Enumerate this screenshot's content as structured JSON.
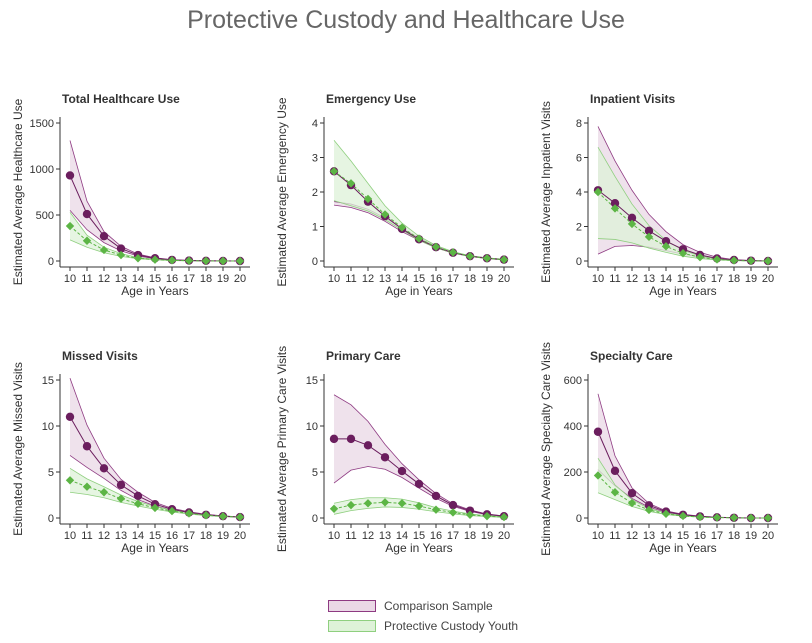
{
  "title": "Protective Custody and Healthcare Use",
  "colors": {
    "comparison": "#6b1e5e",
    "comparison_fill": "#ead8e6",
    "comparison_band": "#8e3a82",
    "custody": "#5cb545",
    "custody_fill": "#def2d8",
    "custody_band": "#8fcf7f",
    "axis": "#333333"
  },
  "legend": {
    "comparison_label": "Comparison Sample",
    "custody_label": "Protective Custody Youth"
  },
  "chart_data": [
    {
      "type": "line",
      "title": "Total Healthcare Use",
      "xlabel": "Age in Years",
      "ylabel": "Estimated Average Healthcare Use",
      "x": [
        10,
        11,
        12,
        13,
        14,
        15,
        16,
        17,
        18,
        19,
        20
      ],
      "ylim": [
        0,
        1500
      ],
      "yticks": [
        0,
        500,
        1000,
        1500
      ],
      "series": [
        {
          "name": "Comparison Sample",
          "values": [
            930,
            510,
            270,
            135,
            65,
            30,
            12,
            5,
            2,
            1,
            0
          ],
          "lower": [
            550,
            340,
            200,
            110,
            55,
            25,
            10,
            4,
            2,
            1,
            0
          ],
          "upper": [
            1310,
            650,
            320,
            160,
            75,
            35,
            15,
            6,
            2,
            1,
            0
          ]
        },
        {
          "name": "Protective Custody Youth",
          "values": [
            380,
            220,
            120,
            65,
            30,
            15,
            7,
            3,
            1,
            0,
            0
          ],
          "lower": [
            230,
            150,
            90,
            50,
            25,
            12,
            5,
            2,
            1,
            0,
            0
          ],
          "upper": [
            530,
            280,
            150,
            80,
            38,
            18,
            8,
            3,
            1,
            0,
            0
          ]
        }
      ]
    },
    {
      "type": "line",
      "title": "Emergency Use",
      "xlabel": "Age in Years",
      "ylabel": "Estimated Average Emergency Use",
      "x": [
        10,
        11,
        12,
        13,
        14,
        15,
        16,
        17,
        18,
        19,
        20
      ],
      "ylim": [
        0,
        4
      ],
      "yticks": [
        0,
        1,
        2,
        3,
        4
      ],
      "series": [
        {
          "name": "Comparison Sample",
          "values": [
            2.6,
            2.2,
            1.72,
            1.3,
            0.93,
            0.63,
            0.4,
            0.24,
            0.14,
            0.08,
            0.04
          ],
          "lower": [
            1.62,
            1.55,
            1.4,
            1.15,
            0.85,
            0.6,
            0.38,
            0.23,
            0.13,
            0.07,
            0.03
          ],
          "upper": [
            1.72,
            1.65,
            1.5,
            1.25,
            0.95,
            0.67,
            0.42,
            0.26,
            0.15,
            0.09,
            0.05
          ]
        },
        {
          "name": "Protective Custody Youth",
          "values": [
            2.6,
            2.25,
            1.8,
            1.35,
            0.97,
            0.65,
            0.41,
            0.25,
            0.14,
            0.08,
            0.04
          ],
          "lower": [
            1.75,
            1.6,
            1.45,
            1.2,
            0.9,
            0.6,
            0.38,
            0.23,
            0.13,
            0.07,
            0.03
          ],
          "upper": [
            3.5,
            2.9,
            2.25,
            1.6,
            1.1,
            0.72,
            0.45,
            0.27,
            0.15,
            0.09,
            0.05
          ]
        }
      ]
    },
    {
      "type": "line",
      "title": "Inpatient Visits",
      "xlabel": "Age in Years",
      "ylabel": "Estimated Average Inpatient Visits",
      "x": [
        10,
        11,
        12,
        13,
        14,
        15,
        16,
        17,
        18,
        19,
        20
      ],
      "ylim": [
        0,
        8
      ],
      "yticks": [
        0,
        2,
        4,
        6,
        8
      ],
      "series": [
        {
          "name": "Comparison Sample",
          "values": [
            4.1,
            3.35,
            2.5,
            1.75,
            1.15,
            0.68,
            0.35,
            0.15,
            0.06,
            0.02,
            0.0
          ],
          "lower": [
            0.4,
            0.85,
            0.9,
            0.8,
            0.6,
            0.4,
            0.22,
            0.1,
            0.04,
            0.01,
            0.0
          ],
          "upper": [
            7.8,
            5.8,
            4.1,
            2.7,
            1.7,
            0.95,
            0.5,
            0.22,
            0.08,
            0.03,
            0.0
          ]
        },
        {
          "name": "Protective Custody Youth",
          "values": [
            4.0,
            3.05,
            2.15,
            1.4,
            0.85,
            0.45,
            0.22,
            0.09,
            0.03,
            0.01,
            0.0
          ],
          "lower": [
            1.3,
            1.25,
            1.05,
            0.75,
            0.5,
            0.28,
            0.14,
            0.06,
            0.02,
            0.0,
            0.0
          ],
          "upper": [
            6.6,
            4.9,
            3.3,
            2.05,
            1.2,
            0.62,
            0.3,
            0.12,
            0.04,
            0.01,
            0.0
          ]
        }
      ]
    },
    {
      "type": "line",
      "title": "Missed Visits",
      "xlabel": "Age in Years",
      "ylabel": "Estimated Average Missed Visits",
      "x": [
        10,
        11,
        12,
        13,
        14,
        15,
        16,
        17,
        18,
        19,
        20
      ],
      "ylim": [
        0,
        15
      ],
      "yticks": [
        0,
        5,
        10,
        15
      ],
      "series": [
        {
          "name": "Comparison Sample",
          "values": [
            11.0,
            7.8,
            5.4,
            3.6,
            2.4,
            1.5,
            0.95,
            0.6,
            0.35,
            0.2,
            0.1
          ],
          "lower": [
            6.8,
            5.5,
            4.3,
            3.0,
            2.0,
            1.3,
            0.85,
            0.52,
            0.3,
            0.17,
            0.08
          ],
          "upper": [
            15.2,
            10.1,
            6.5,
            4.2,
            2.8,
            1.7,
            1.05,
            0.68,
            0.4,
            0.23,
            0.12
          ]
        },
        {
          "name": "Protective Custody Youth",
          "values": [
            4.1,
            3.4,
            2.8,
            2.1,
            1.55,
            1.1,
            0.75,
            0.5,
            0.3,
            0.18,
            0.1
          ],
          "lower": [
            2.8,
            2.55,
            2.2,
            1.7,
            1.3,
            0.95,
            0.65,
            0.43,
            0.26,
            0.15,
            0.08
          ],
          "upper": [
            5.4,
            4.25,
            3.4,
            2.5,
            1.8,
            1.25,
            0.85,
            0.57,
            0.34,
            0.21,
            0.12
          ]
        }
      ]
    },
    {
      "type": "line",
      "title": "Primary Care",
      "xlabel": "Age in Years",
      "ylabel": "Estimated Average Primary Care Visits",
      "x": [
        10,
        11,
        12,
        13,
        14,
        15,
        16,
        17,
        18,
        19,
        20
      ],
      "ylim": [
        0,
        15
      ],
      "yticks": [
        0,
        5,
        10,
        15
      ],
      "series": [
        {
          "name": "Comparison Sample",
          "values": [
            8.6,
            8.6,
            7.9,
            6.6,
            5.1,
            3.7,
            2.4,
            1.4,
            0.8,
            0.4,
            0.2
          ],
          "lower": [
            3.8,
            5.2,
            5.6,
            5.3,
            4.4,
            3.25,
            2.15,
            1.27,
            0.72,
            0.36,
            0.18
          ],
          "upper": [
            13.4,
            12.3,
            10.5,
            8.0,
            5.9,
            4.15,
            2.65,
            1.53,
            0.88,
            0.44,
            0.22
          ]
        },
        {
          "name": "Protective Custody Youth",
          "values": [
            1.0,
            1.4,
            1.6,
            1.7,
            1.6,
            1.3,
            0.9,
            0.6,
            0.35,
            0.2,
            0.1
          ],
          "lower": [
            0.4,
            0.8,
            1.05,
            1.2,
            1.15,
            0.95,
            0.68,
            0.45,
            0.26,
            0.15,
            0.07
          ],
          "upper": [
            1.6,
            2.0,
            2.2,
            2.2,
            2.05,
            1.65,
            1.12,
            0.75,
            0.44,
            0.25,
            0.13
          ]
        }
      ]
    },
    {
      "type": "line",
      "title": "Specialty Care",
      "xlabel": "Age in Years",
      "ylabel": "Estimated Average Specialty Care Visits",
      "x": [
        10,
        11,
        12,
        13,
        14,
        15,
        16,
        17,
        18,
        19,
        20
      ],
      "ylim": [
        0,
        600
      ],
      "yticks": [
        0,
        200,
        400,
        600
      ],
      "series": [
        {
          "name": "Comparison Sample",
          "values": [
            375,
            205,
            108,
            55,
            28,
            14,
            7,
            3,
            1,
            0,
            0
          ],
          "lower": [
            210,
            140,
            85,
            47,
            25,
            12,
            6,
            3,
            1,
            0,
            0
          ],
          "upper": [
            540,
            270,
            131,
            63,
            31,
            16,
            8,
            3,
            1,
            0,
            0
          ]
        },
        {
          "name": "Protective Custody Youth",
          "values": [
            185,
            112,
            65,
            35,
            18,
            9,
            4,
            2,
            1,
            0,
            0
          ],
          "lower": [
            110,
            80,
            50,
            29,
            15,
            8,
            4,
            2,
            1,
            0,
            0
          ],
          "upper": [
            260,
            144,
            80,
            41,
            21,
            10,
            5,
            2,
            1,
            0,
            0
          ]
        }
      ]
    }
  ]
}
